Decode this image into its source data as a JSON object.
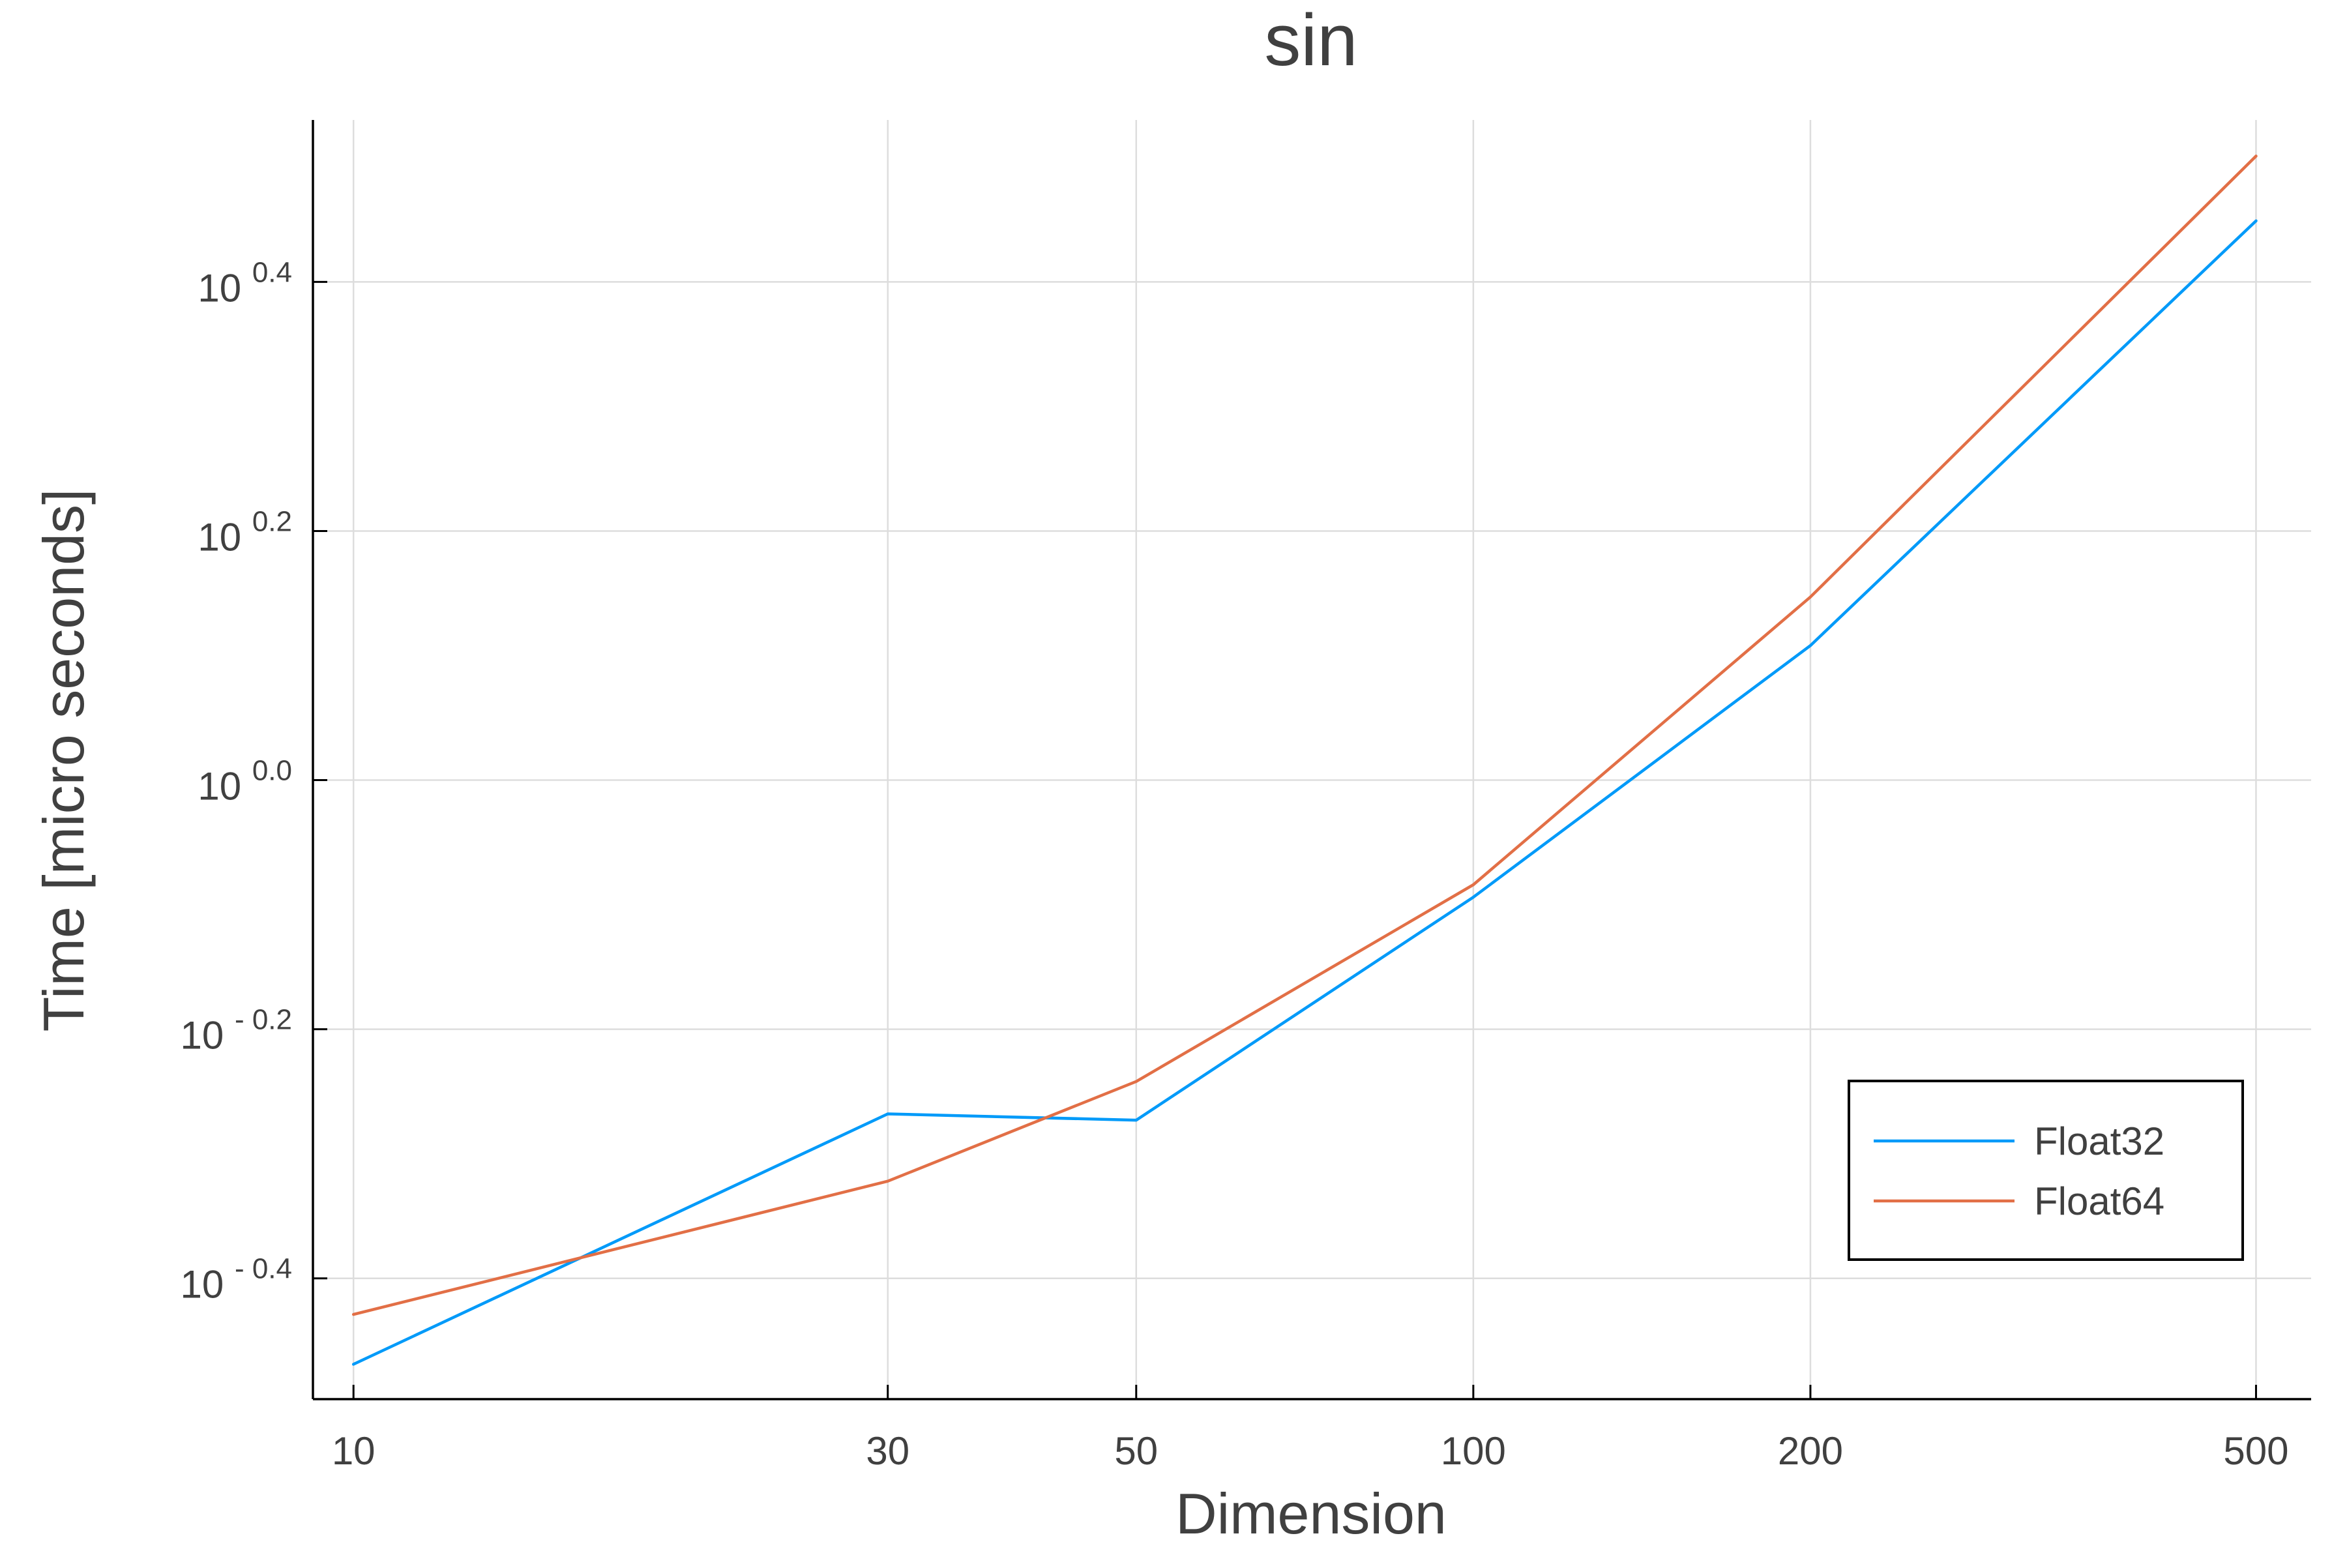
{
  "chart_data": {
    "type": "line",
    "title": "sin",
    "xlabel": "Dimension",
    "ylabel": "Time [micro seconds]",
    "x_scale": "log10",
    "y_scale": "log10",
    "x": [
      10,
      30,
      50,
      100,
      200,
      500
    ],
    "xlim": [
      9.2,
      560
    ],
    "ylim_log10": [
      -0.497,
      0.53
    ],
    "x_ticks": [
      {
        "value": 10,
        "label": "10"
      },
      {
        "value": 30,
        "label": "30"
      },
      {
        "value": 50,
        "label": "50"
      },
      {
        "value": 100,
        "label": "100"
      },
      {
        "value": 200,
        "label": "200"
      },
      {
        "value": 500,
        "label": "500"
      }
    ],
    "y_ticks": [
      {
        "value_log10": 0.4,
        "base": "10",
        "exponent": "0.4"
      },
      {
        "value_log10": 0.2,
        "base": "10",
        "exponent": "0.2"
      },
      {
        "value_log10": 0.0,
        "base": "10",
        "exponent": "0.0"
      },
      {
        "value_log10": -0.2,
        "base": "10",
        "exponent": "- 0.2"
      },
      {
        "value_log10": -0.4,
        "base": "10",
        "exponent": "- 0.4"
      }
    ],
    "series": [
      {
        "name": "Float32",
        "color": "#009af9",
        "y_log10": [
          -0.469,
          -0.268,
          -0.273,
          -0.094,
          0.108,
          0.449
        ]
      },
      {
        "name": "Float64",
        "color": "#e26f46",
        "y_log10": [
          -0.429,
          -0.322,
          -0.242,
          -0.084,
          0.147,
          0.501
        ]
      }
    ],
    "grid": true,
    "legend_position": "bottom-right"
  }
}
